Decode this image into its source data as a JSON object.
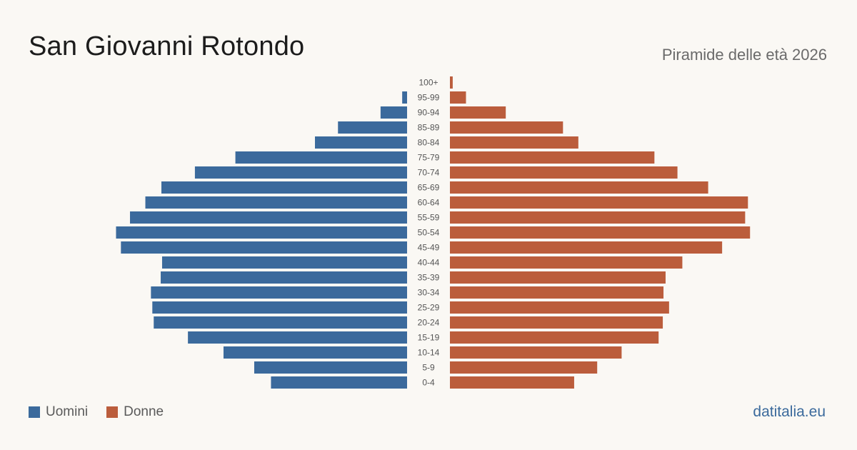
{
  "title": "San Giovanni Rotondo",
  "subtitle": "Piramide delle età 2026",
  "brand": "datitalia.eu",
  "legend": {
    "men": "Uomini",
    "women": "Donne"
  },
  "colors": {
    "men": "#3b6a9c",
    "women": "#bb5d3c"
  },
  "chart_data": {
    "type": "bar",
    "orientation": "horizontal-pyramid",
    "categories": [
      "100+",
      "95-99",
      "90-94",
      "85-89",
      "80-84",
      "75-79",
      "70-74",
      "65-69",
      "60-64",
      "55-59",
      "50-54",
      "45-49",
      "40-44",
      "35-39",
      "30-34",
      "25-29",
      "20-24",
      "15-19",
      "10-14",
      "5-9",
      "0-4"
    ],
    "series": [
      {
        "name": "Uomini",
        "values": [
          0,
          7,
          38,
          99,
          132,
          246,
          304,
          352,
          375,
          397,
          417,
          410,
          351,
          353,
          367,
          365,
          363,
          314,
          263,
          219,
          195
        ]
      },
      {
        "name": "Donne",
        "values": [
          4,
          23,
          80,
          162,
          184,
          293,
          326,
          370,
          427,
          423,
          430,
          390,
          333,
          309,
          306,
          314,
          305,
          299,
          246,
          211,
          178
        ]
      }
    ],
    "xlim": [
      0,
      440
    ],
    "grid": false,
    "legend_position": "bottom-left"
  }
}
